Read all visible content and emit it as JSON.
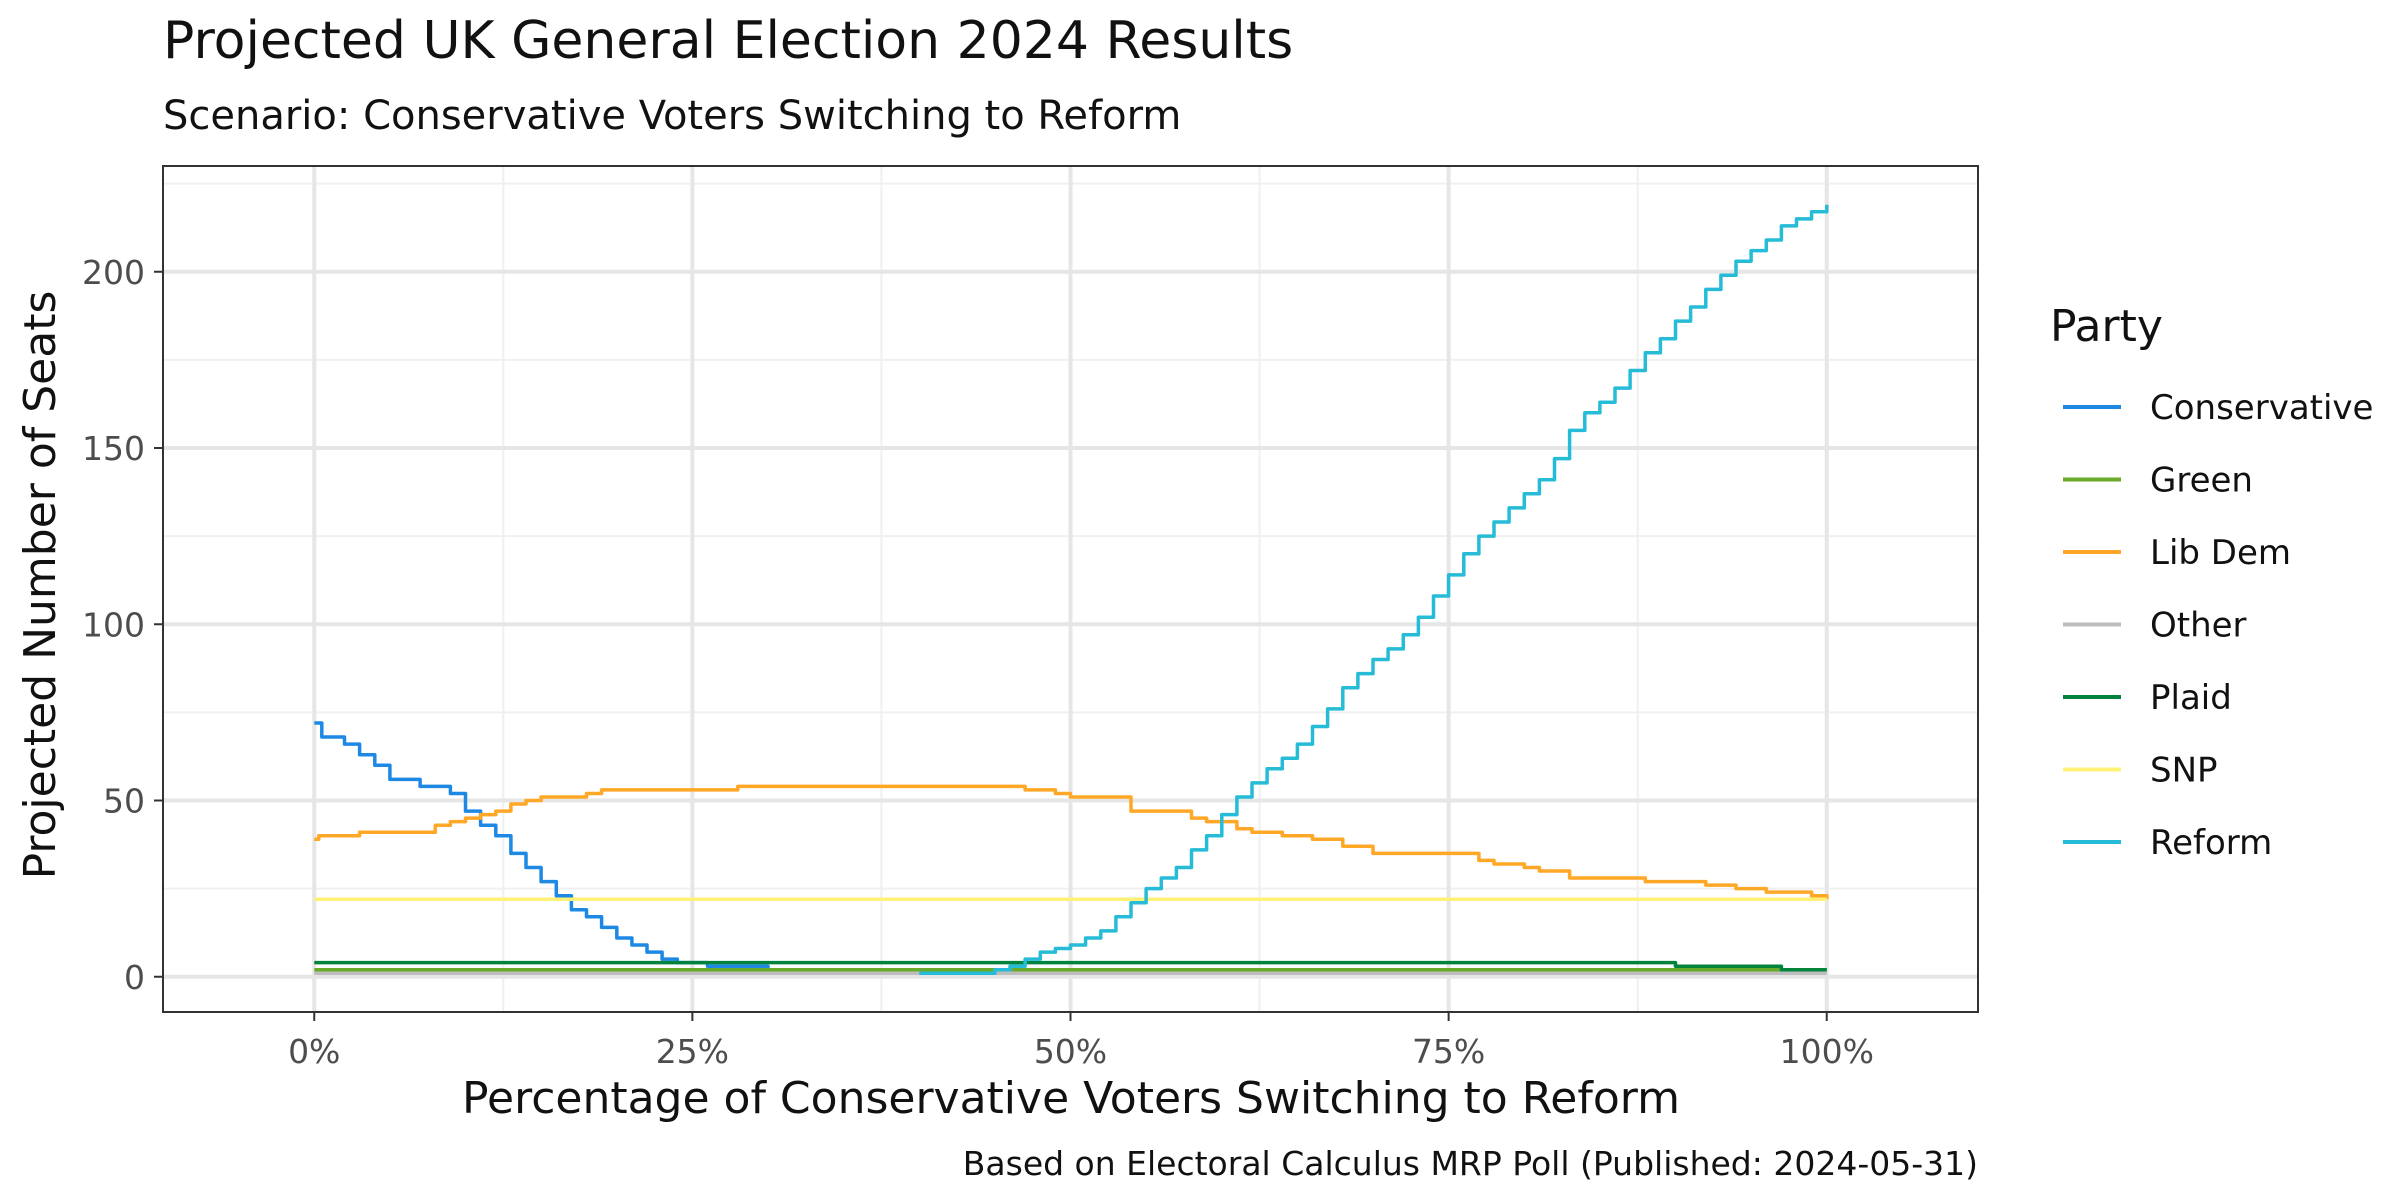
{
  "chart_data": {
    "type": "line",
    "title": "Projected UK General Election 2024 Results",
    "subtitle": "Scenario: Conservative Voters Switching to Reform",
    "xlabel": "Percentage of Conservative Voters Switching to Reform",
    "ylabel": "Projected Number of Seats",
    "caption": "Based on Electoral Calculus MRP Poll (Published: 2024-05-31)",
    "x_unit": "percent",
    "xlim": [
      -10,
      110
    ],
    "ylim": [
      -10,
      230
    ],
    "x_ticks": [
      0,
      25,
      50,
      75,
      100
    ],
    "x_tick_labels": [
      "0%",
      "25%",
      "50%",
      "75%",
      "100%"
    ],
    "y_ticks": [
      0,
      50,
      100,
      150,
      200
    ],
    "y_tick_labels": [
      "0",
      "50",
      "100",
      "150",
      "200"
    ],
    "grid": true,
    "legend": {
      "title": "Party",
      "position": "right"
    },
    "series": [
      {
        "name": "Conservative",
        "color": "#1e88e5",
        "points": [
          [
            0,
            72
          ],
          [
            0.5,
            68
          ],
          [
            2,
            66
          ],
          [
            3,
            63
          ],
          [
            4,
            60
          ],
          [
            5,
            56
          ],
          [
            7,
            54
          ],
          [
            9,
            52
          ],
          [
            10,
            47
          ],
          [
            11,
            43
          ],
          [
            12,
            40
          ],
          [
            13,
            35
          ],
          [
            14,
            31
          ],
          [
            15,
            27
          ],
          [
            16,
            23
          ],
          [
            17,
            19
          ],
          [
            18,
            17
          ],
          [
            19,
            14
          ],
          [
            20,
            11
          ],
          [
            21,
            9
          ],
          [
            22,
            7
          ],
          [
            23,
            5
          ],
          [
            24,
            4
          ],
          [
            26,
            3
          ],
          [
            30,
            2
          ],
          [
            35,
            2
          ]
        ]
      },
      {
        "name": "Green",
        "color": "#6aaa2a",
        "points": [
          [
            0,
            2
          ],
          [
            100,
            2
          ]
        ]
      },
      {
        "name": "Lib Dem",
        "color": "#ffa726",
        "points": [
          [
            0,
            39
          ],
          [
            0.3,
            40
          ],
          [
            2,
            40
          ],
          [
            3,
            41
          ],
          [
            6,
            41
          ],
          [
            8,
            43
          ],
          [
            9,
            44
          ],
          [
            10,
            45
          ],
          [
            11,
            46
          ],
          [
            12,
            47
          ],
          [
            13,
            49
          ],
          [
            14,
            50
          ],
          [
            15,
            51
          ],
          [
            17,
            51
          ],
          [
            18,
            52
          ],
          [
            19,
            53
          ],
          [
            22,
            53
          ],
          [
            27,
            53
          ],
          [
            28,
            54
          ],
          [
            46,
            54
          ],
          [
            47,
            53
          ],
          [
            49,
            52
          ],
          [
            50,
            51
          ],
          [
            53,
            51
          ],
          [
            54,
            47
          ],
          [
            57,
            47
          ],
          [
            58,
            45
          ],
          [
            59,
            44
          ],
          [
            61,
            42
          ],
          [
            62,
            41
          ],
          [
            64,
            40
          ],
          [
            66,
            39
          ],
          [
            68,
            37
          ],
          [
            70,
            35
          ],
          [
            75,
            35
          ],
          [
            77,
            33
          ],
          [
            78,
            32
          ],
          [
            80,
            31
          ],
          [
            81,
            30
          ],
          [
            83,
            28
          ],
          [
            86,
            28
          ],
          [
            88,
            27
          ],
          [
            91,
            27
          ],
          [
            92,
            26
          ],
          [
            94,
            25
          ],
          [
            96,
            24
          ],
          [
            98,
            24
          ],
          [
            99,
            23
          ],
          [
            100,
            22
          ]
        ]
      },
      {
        "name": "Other",
        "color": "#bdbdbd",
        "points": [
          [
            0,
            1
          ],
          [
            100,
            1
          ]
        ]
      },
      {
        "name": "Plaid",
        "color": "#00843d",
        "points": [
          [
            0,
            4
          ],
          [
            89,
            4
          ],
          [
            90,
            3
          ],
          [
            96,
            3
          ],
          [
            97,
            2
          ],
          [
            100,
            2
          ]
        ]
      },
      {
        "name": "SNP",
        "color": "#fff176",
        "points": [
          [
            0,
            22
          ],
          [
            100,
            22
          ]
        ]
      },
      {
        "name": "Reform",
        "color": "#26bcd7",
        "points": [
          [
            40,
            1
          ],
          [
            44,
            1
          ],
          [
            45,
            2
          ],
          [
            46,
            3
          ],
          [
            47,
            5
          ],
          [
            48,
            7
          ],
          [
            49,
            8
          ],
          [
            50,
            9
          ],
          [
            51,
            11
          ],
          [
            52,
            13
          ],
          [
            53,
            17
          ],
          [
            54,
            21
          ],
          [
            55,
            25
          ],
          [
            56,
            28
          ],
          [
            57,
            31
          ],
          [
            58,
            36
          ],
          [
            59,
            40
          ],
          [
            60,
            46
          ],
          [
            61,
            51
          ],
          [
            62,
            55
          ],
          [
            63,
            59
          ],
          [
            64,
            62
          ],
          [
            65,
            66
          ],
          [
            66,
            71
          ],
          [
            67,
            76
          ],
          [
            68,
            82
          ],
          [
            69,
            86
          ],
          [
            70,
            90
          ],
          [
            71,
            93
          ],
          [
            72,
            97
          ],
          [
            73,
            102
          ],
          [
            74,
            108
          ],
          [
            75,
            114
          ],
          [
            76,
            120
          ],
          [
            77,
            125
          ],
          [
            78,
            129
          ],
          [
            79,
            133
          ],
          [
            80,
            137
          ],
          [
            81,
            141
          ],
          [
            82,
            147
          ],
          [
            83,
            155
          ],
          [
            84,
            160
          ],
          [
            85,
            163
          ],
          [
            86,
            167
          ],
          [
            87,
            172
          ],
          [
            88,
            177
          ],
          [
            89,
            181
          ],
          [
            90,
            186
          ],
          [
            91,
            190
          ],
          [
            92,
            195
          ],
          [
            93,
            199
          ],
          [
            94,
            203
          ],
          [
            95,
            206
          ],
          [
            96,
            209
          ],
          [
            97,
            213
          ],
          [
            98,
            215
          ],
          [
            99,
            217
          ],
          [
            100,
            219
          ]
        ]
      }
    ]
  }
}
